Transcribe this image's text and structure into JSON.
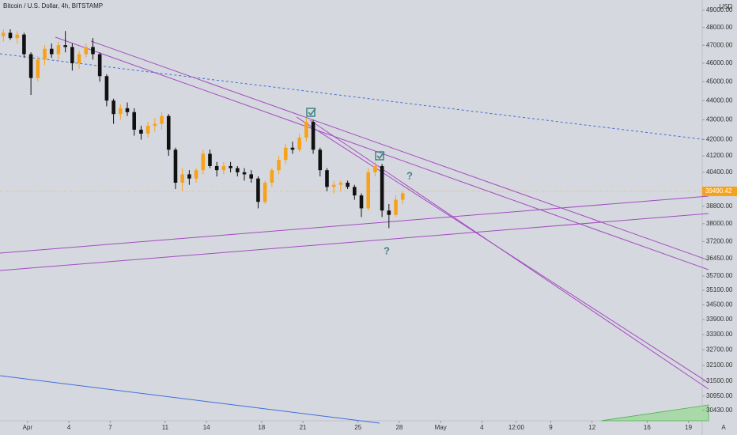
{
  "chart_data": {
    "type": "candlestick",
    "title": "Bitcoin / U.S. Dollar, 4h, BITSTAMP",
    "currency": "USD",
    "log_scale": true,
    "up_color": "#f7a21b",
    "down_color": "#111111",
    "x": [
      -2,
      -1.5,
      -1,
      -0.5,
      0,
      0.5,
      1,
      1.5,
      2,
      2.5,
      3,
      3.5,
      4,
      4.5,
      5,
      5.5,
      6,
      6.5,
      7,
      7.5,
      8,
      8.5,
      9,
      9.5,
      10,
      10.5,
      11,
      11.5,
      12,
      12.5,
      13,
      13.5,
      14,
      14.5,
      15,
      15.5,
      16,
      16.5,
      17,
      17.5,
      18,
      18.5,
      19,
      19.5,
      20,
      20.5,
      21,
      21.5,
      22,
      22.5,
      23,
      23.5,
      24,
      24.5,
      25,
      25.5,
      26,
      26.5,
      27
    ],
    "open": [
      47500,
      47700,
      47400,
      47600,
      46500,
      45200,
      46200,
      46800,
      46500,
      47000,
      46900,
      46000,
      46500,
      46900,
      46500,
      45300,
      44000,
      43300,
      43600,
      43400,
      42500,
      42300,
      42700,
      42800,
      43200,
      41500,
      39900,
      40300,
      40100,
      40500,
      41300,
      40700,
      40500,
      40700,
      40600,
      40400,
      40300,
      40100,
      39000,
      39900,
      40500,
      41000,
      41600,
      41500,
      42100,
      42900,
      41500,
      40500,
      39700,
      39800,
      39900,
      39700,
      39300,
      38700,
      40400,
      40700,
      38600,
      38400,
      39100
    ],
    "high": [
      47900,
      47900,
      47800,
      47700,
      46600,
      46400,
      47000,
      47100,
      47200,
      47800,
      47100,
      46700,
      47100,
      47400,
      46600,
      45400,
      44100,
      43800,
      43900,
      43600,
      42700,
      42900,
      43100,
      43400,
      43300,
      41600,
      40600,
      40500,
      40600,
      41500,
      41500,
      40900,
      40900,
      40900,
      40700,
      40600,
      40500,
      40200,
      40000,
      40600,
      41200,
      41800,
      41900,
      42300,
      43100,
      43000,
      41600,
      40600,
      40000,
      40000,
      40000,
      39800,
      39400,
      40600,
      40900,
      40800,
      38900,
      39300,
      39500
    ],
    "low": [
      47200,
      47300,
      47100,
      46300,
      44300,
      45000,
      45900,
      46300,
      46200,
      46600,
      45600,
      45700,
      46300,
      46200,
      45000,
      43700,
      42800,
      43000,
      43200,
      42200,
      42000,
      42100,
      42400,
      42500,
      41200,
      39600,
      39500,
      39800,
      39900,
      40300,
      40600,
      40200,
      40300,
      40400,
      40200,
      40000,
      39900,
      38700,
      38900,
      39700,
      40300,
      40800,
      41300,
      41400,
      41900,
      41300,
      40200,
      39500,
      39400,
      39500,
      39600,
      39100,
      38300,
      38600,
      40200,
      38300,
      37800,
      38300,
      38900
    ],
    "close": [
      47700,
      47400,
      47600,
      46500,
      45200,
      46200,
      46800,
      46500,
      47000,
      46900,
      46000,
      46500,
      46900,
      46500,
      45300,
      44000,
      43300,
      43600,
      43400,
      42500,
      42300,
      42700,
      42800,
      43200,
      41500,
      39900,
      40300,
      40100,
      40500,
      41300,
      40700,
      40500,
      40700,
      40600,
      40400,
      40300,
      40100,
      39000,
      39900,
      40500,
      41000,
      41600,
      41500,
      42100,
      42900,
      41500,
      40500,
      39700,
      39800,
      39900,
      39700,
      39300,
      38700,
      40400,
      40700,
      38600,
      38400,
      39100,
      39400
    ],
    "last_price": 39490.42,
    "xlim": [
      -2,
      49
    ],
    "xticks": [
      {
        "value": 0,
        "label": "Apr"
      },
      {
        "value": 3,
        "label": "4"
      },
      {
        "value": 6,
        "label": "7"
      },
      {
        "value": 10,
        "label": "11"
      },
      {
        "value": 13,
        "label": "14"
      },
      {
        "value": 17,
        "label": "18"
      },
      {
        "value": 20,
        "label": "21"
      },
      {
        "value": 24,
        "label": "25"
      },
      {
        "value": 27,
        "label": "28"
      },
      {
        "value": 30,
        "label": "May"
      },
      {
        "value": 33,
        "label": "4"
      },
      {
        "value": 35.5,
        "label": "12:00"
      },
      {
        "value": 38,
        "label": "9"
      },
      {
        "value": 41,
        "label": "12"
      },
      {
        "value": 45,
        "label": "16"
      },
      {
        "value": 48,
        "label": "19"
      }
    ],
    "ylim": [
      30050,
      49600
    ],
    "yticks": [
      {
        "value": 49000,
        "label": "49000.00"
      },
      {
        "value": 48000,
        "label": "48000.00"
      },
      {
        "value": 47000,
        "label": "47000.00"
      },
      {
        "value": 46000,
        "label": "46000.00"
      },
      {
        "value": 45000,
        "label": "45000.00"
      },
      {
        "value": 44000,
        "label": "44000.00"
      },
      {
        "value": 43000,
        "label": "43000.00"
      },
      {
        "value": 42000,
        "label": "42000.00"
      },
      {
        "value": 41200,
        "label": "41200.00"
      },
      {
        "value": 40400,
        "label": "40400.00"
      },
      {
        "value": 38800,
        "label": "38800.00"
      },
      {
        "value": 38000,
        "label": "38000.00"
      },
      {
        "value": 37200,
        "label": "37200.00"
      },
      {
        "value": 36450,
        "label": "36450.00"
      },
      {
        "value": 35700,
        "label": "35700.00"
      },
      {
        "value": 35100,
        "label": "35100.00"
      },
      {
        "value": 34500,
        "label": "34500.00"
      },
      {
        "value": 33900,
        "label": "33900.00"
      },
      {
        "value": 33300,
        "label": "33300.00"
      },
      {
        "value": 32700,
        "label": "32700.00"
      },
      {
        "value": 32100,
        "label": "32100.00"
      },
      {
        "value": 31500,
        "label": "31500.00"
      },
      {
        "value": 30950,
        "label": "30950.00"
      },
      {
        "value": 30430,
        "label": "30430.00"
      }
    ],
    "annotations": [
      "?",
      "?"
    ],
    "scale_mode": "A"
  }
}
